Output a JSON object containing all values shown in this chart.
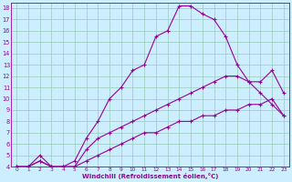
{
  "xlabel": "Windchill (Refroidissement éolien,°C)",
  "bg_color": "#cceeff",
  "grid_color": "#99ccbb",
  "line_color": "#990099",
  "xlim": [
    -0.5,
    23.5
  ],
  "ylim": [
    4,
    18.5
  ],
  "xtick_labels": [
    "0",
    "1",
    "2",
    "3",
    "4",
    "5",
    "6",
    "7",
    "8",
    "9",
    "10",
    "11",
    "12",
    "13",
    "14",
    "15",
    "16",
    "17",
    "18",
    "19",
    "20",
    "21",
    "22",
    "23"
  ],
  "ytick_labels": [
    "4",
    "5",
    "6",
    "7",
    "8",
    "9",
    "10",
    "11",
    "12",
    "13",
    "14",
    "15",
    "16",
    "17",
    "18"
  ],
  "line1_x": [
    0,
    1,
    2,
    3,
    4,
    5,
    6,
    7,
    8,
    9,
    10,
    11,
    12,
    13,
    14,
    15,
    16,
    17,
    18,
    19,
    20,
    21,
    22,
    23
  ],
  "line1_y": [
    4.0,
    4.0,
    5.0,
    4.0,
    4.0,
    4.5,
    6.5,
    8.0,
    10.0,
    11.0,
    12.5,
    13.0,
    15.5,
    16.0,
    18.2,
    18.2,
    17.5,
    17.0,
    15.5,
    13.0,
    11.5,
    10.5,
    9.5,
    8.5
  ],
  "line2_x": [
    0,
    1,
    2,
    3,
    4,
    5,
    6,
    7,
    8,
    9,
    10,
    11,
    12,
    13,
    14,
    15,
    16,
    17,
    18,
    19,
    20,
    21,
    22,
    23
  ],
  "line2_y": [
    4.0,
    4.0,
    4.5,
    4.0,
    4.0,
    4.0,
    5.5,
    6.5,
    7.0,
    7.5,
    8.0,
    8.5,
    9.0,
    9.5,
    10.0,
    10.5,
    11.0,
    11.5,
    12.0,
    12.0,
    11.5,
    11.5,
    12.5,
    10.5
  ],
  "line3_x": [
    0,
    1,
    2,
    3,
    4,
    5,
    6,
    7,
    8,
    9,
    10,
    11,
    12,
    13,
    14,
    15,
    16,
    17,
    18,
    19,
    20,
    21,
    22,
    23
  ],
  "line3_y": [
    4.0,
    4.0,
    4.5,
    4.0,
    4.0,
    4.0,
    4.5,
    5.0,
    5.5,
    6.0,
    6.5,
    7.0,
    7.0,
    7.5,
    8.0,
    8.0,
    8.5,
    8.5,
    9.0,
    9.0,
    9.5,
    9.5,
    10.0,
    8.5
  ]
}
